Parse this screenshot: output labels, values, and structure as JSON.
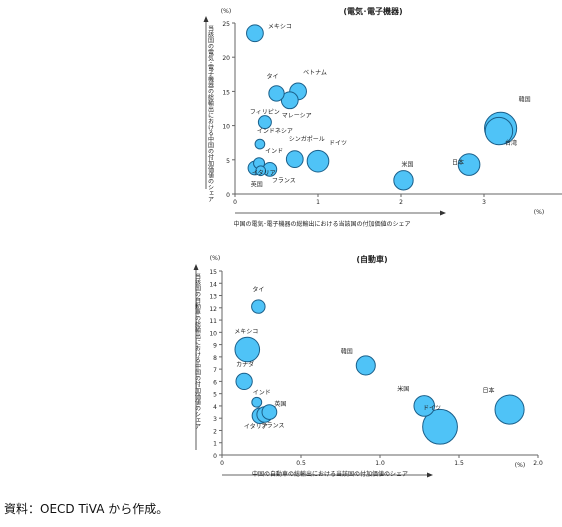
{
  "source_note": "資料：OECD TiVA から作成。",
  "chart_data": [
    {
      "type": "scatter",
      "title": "(電気･電子機器)",
      "xlabel": "中国の電気･電子機器の総輸出における当該国の付加価値のシェア",
      "ylabel": "当該国の電気･電子機器の総輸出における中国の付加価値のシェア",
      "x_unit": "(%)",
      "y_unit": "(%)",
      "xlim": [
        0,
        4
      ],
      "ylim": [
        0,
        25
      ],
      "xticks": [
        0,
        1,
        2,
        3,
        4
      ],
      "yticks": [
        0,
        5,
        10,
        15,
        20,
        25
      ],
      "points": [
        {
          "name": "メキシコ",
          "x": 0.24,
          "y": 23.5,
          "size": 3
        },
        {
          "name": "タイ",
          "x": 0.5,
          "y": 14.7,
          "size": 2.5
        },
        {
          "name": "ベトナム",
          "x": 0.76,
          "y": 15.0,
          "size": 3
        },
        {
          "name": "マレーシア",
          "x": 0.66,
          "y": 13.7,
          "size": 3
        },
        {
          "name": "フィリピン",
          "x": 0.36,
          "y": 10.5,
          "size": 1.8
        },
        {
          "name": "インドネシア",
          "x": 0.3,
          "y": 7.3,
          "size": 1
        },
        {
          "name": "シンガポール",
          "x": 0.72,
          "y": 5.1,
          "size": 3
        },
        {
          "name": "ドイツ",
          "x": 1.0,
          "y": 4.8,
          "size": 5
        },
        {
          "name": "インド",
          "x": 0.29,
          "y": 4.5,
          "size": 1.3
        },
        {
          "name": "イタリア",
          "x": 0.24,
          "y": 3.8,
          "size": 2
        },
        {
          "name": "英国",
          "x": 0.31,
          "y": 3.4,
          "size": 1
        },
        {
          "name": "フランス",
          "x": 0.42,
          "y": 3.6,
          "size": 2
        },
        {
          "name": "米国",
          "x": 2.03,
          "y": 2.0,
          "size": 4
        },
        {
          "name": "日本",
          "x": 2.82,
          "y": 4.3,
          "size": 5
        },
        {
          "name": "韓国",
          "x": 3.2,
          "y": 9.6,
          "size": 11
        },
        {
          "name": "台湾",
          "x": 3.18,
          "y": 9.2,
          "size": 8
        }
      ]
    },
    {
      "type": "scatter",
      "title": "(自動車)",
      "xlabel": "中国の自動車の総輸出における当該国の付加価値のシェア",
      "ylabel": "当該国の自動車の総輸出における中国の付加価値のシェア",
      "x_unit": "(%)",
      "y_unit": "(%)",
      "xlim": [
        0,
        2.0
      ],
      "ylim": [
        0,
        15
      ],
      "xticks": [
        "0",
        "0.5",
        "1.0",
        "1.5",
        "2.0"
      ],
      "yticks": [
        0,
        1,
        2,
        3,
        4,
        5,
        6,
        7,
        8,
        9,
        10,
        11,
        12,
        13,
        14,
        15
      ],
      "points": [
        {
          "name": "タイ",
          "x": 0.23,
          "y": 12.1,
          "size": 1.5
        },
        {
          "name": "メキシコ",
          "x": 0.16,
          "y": 8.6,
          "size": 5
        },
        {
          "name": "韓国",
          "x": 0.91,
          "y": 7.3,
          "size": 3
        },
        {
          "name": "カナダ",
          "x": 0.14,
          "y": 6.0,
          "size": 2.2
        },
        {
          "name": "インド",
          "x": 0.22,
          "y": 4.3,
          "size": 0.8
        },
        {
          "name": "イタリア",
          "x": 0.24,
          "y": 3.2,
          "size": 2
        },
        {
          "name": "英国",
          "x": 0.3,
          "y": 3.5,
          "size": 1.8
        },
        {
          "name": "フランス",
          "x": 0.27,
          "y": 3.3,
          "size": 2
        },
        {
          "name": "米国",
          "x": 1.28,
          "y": 4.0,
          "size": 3.5
        },
        {
          "name": "ドイツ",
          "x": 1.38,
          "y": 2.3,
          "size": 10
        },
        {
          "name": "日本",
          "x": 1.82,
          "y": 3.7,
          "size": 7
        }
      ]
    }
  ]
}
